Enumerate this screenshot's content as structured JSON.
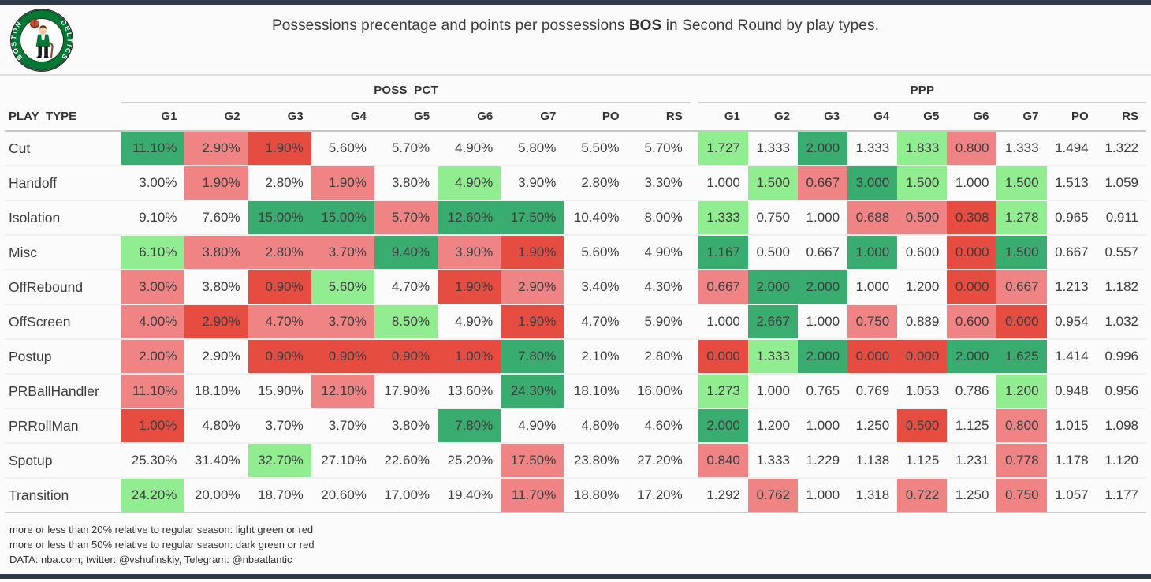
{
  "header": {
    "title_prefix": "Possessions precentage and points per possessions ",
    "title_team": "BOS",
    "title_suffix": " in Second Round by play types.",
    "logo_team": "Boston Celtics",
    "logo_ring_words": [
      "BOSTON",
      "CELTICS"
    ]
  },
  "colors": {
    "dg": "#38ad6f",
    "lg": "#90ee90",
    "lr": "#f08484",
    "dr": "#e64c3f",
    "bar": "#2e3d4c",
    "celtics_green": "#007a33"
  },
  "chart_data": {
    "type": "heatmap",
    "title": "Possessions precentage and points per possessions BOS in Second Round by play types.",
    "row_header": "PLAY_TYPE",
    "col_groups": [
      "POSS_PCT",
      "PPP"
    ],
    "columns": [
      "G1",
      "G2",
      "G3",
      "G4",
      "G5",
      "G6",
      "G7",
      "PO",
      "RS"
    ],
    "legend": "light green/red = ±20% vs regular season; dark green/red = ±50% vs regular season",
    "rows": [
      {
        "play_type": "Cut",
        "poss_pct": [
          "11.10%",
          "2.90%",
          "1.90%",
          "5.60%",
          "5.70%",
          "4.90%",
          "5.80%",
          "5.50%",
          "5.70%"
        ],
        "poss_colors": [
          "dg",
          "lr",
          "dr",
          "",
          "",
          "",
          "",
          "",
          ""
        ],
        "ppp": [
          "1.727",
          "1.333",
          "2.000",
          "1.333",
          "1.833",
          "0.800",
          "1.333",
          "1.494",
          "1.322"
        ],
        "ppp_colors": [
          "lg",
          "",
          "dg",
          "",
          "lg",
          "lr",
          "",
          "",
          ""
        ]
      },
      {
        "play_type": "Handoff",
        "poss_pct": [
          "3.00%",
          "1.90%",
          "2.80%",
          "1.90%",
          "3.80%",
          "4.90%",
          "3.90%",
          "2.80%",
          "3.30%"
        ],
        "poss_colors": [
          "",
          "lr",
          "",
          "lr",
          "",
          "lg",
          "",
          "",
          ""
        ],
        "ppp": [
          "1.000",
          "1.500",
          "0.667",
          "3.000",
          "1.500",
          "1.000",
          "1.500",
          "1.513",
          "1.059"
        ],
        "ppp_colors": [
          "",
          "lg",
          "lr",
          "dg",
          "lg",
          "",
          "lg",
          "",
          ""
        ]
      },
      {
        "play_type": "Isolation",
        "poss_pct": [
          "9.10%",
          "7.60%",
          "15.00%",
          "15.00%",
          "5.70%",
          "12.60%",
          "17.50%",
          "10.40%",
          "8.00%"
        ],
        "poss_colors": [
          "",
          "",
          "dg",
          "dg",
          "lr",
          "dg",
          "dg",
          "",
          ""
        ],
        "ppp": [
          "1.333",
          "0.750",
          "1.000",
          "0.688",
          "0.500",
          "0.308",
          "1.278",
          "0.965",
          "0.911"
        ],
        "ppp_colors": [
          "lg",
          "",
          "",
          "lr",
          "lr",
          "dr",
          "lg",
          "",
          ""
        ]
      },
      {
        "play_type": "Misc",
        "poss_pct": [
          "6.10%",
          "3.80%",
          "2.80%",
          "3.70%",
          "9.40%",
          "3.90%",
          "1.90%",
          "5.60%",
          "4.90%"
        ],
        "poss_colors": [
          "lg",
          "lr",
          "lr",
          "lr",
          "dg",
          "lr",
          "dr",
          "",
          ""
        ],
        "ppp": [
          "1.167",
          "0.500",
          "0.667",
          "1.000",
          "0.600",
          "0.000",
          "1.500",
          "0.667",
          "0.557"
        ],
        "ppp_colors": [
          "dg",
          "",
          "",
          "dg",
          "",
          "dr",
          "dg",
          "",
          ""
        ]
      },
      {
        "play_type": "OffRebound",
        "poss_pct": [
          "3.00%",
          "3.80%",
          "0.90%",
          "5.60%",
          "4.70%",
          "1.90%",
          "2.90%",
          "3.40%",
          "4.30%"
        ],
        "poss_colors": [
          "lr",
          "",
          "dr",
          "lg",
          "",
          "dr",
          "lr",
          "",
          ""
        ],
        "ppp": [
          "0.667",
          "2.000",
          "2.000",
          "1.000",
          "1.200",
          "0.000",
          "0.667",
          "1.213",
          "1.182"
        ],
        "ppp_colors": [
          "lr",
          "dg",
          "dg",
          "",
          "",
          "dr",
          "lr",
          "",
          ""
        ]
      },
      {
        "play_type": "OffScreen",
        "poss_pct": [
          "4.00%",
          "2.90%",
          "4.70%",
          "3.70%",
          "8.50%",
          "4.90%",
          "1.90%",
          "4.70%",
          "5.90%"
        ],
        "poss_colors": [
          "lr",
          "dr",
          "lr",
          "lr",
          "lg",
          "",
          "dr",
          "",
          ""
        ],
        "ppp": [
          "1.000",
          "2.667",
          "1.000",
          "0.750",
          "0.889",
          "0.600",
          "0.000",
          "0.954",
          "1.032"
        ],
        "ppp_colors": [
          "",
          "dg",
          "",
          "lr",
          "",
          "lr",
          "dr",
          "",
          ""
        ]
      },
      {
        "play_type": "Postup",
        "poss_pct": [
          "2.00%",
          "2.90%",
          "0.90%",
          "0.90%",
          "0.90%",
          "1.00%",
          "7.80%",
          "2.10%",
          "2.80%"
        ],
        "poss_colors": [
          "lr",
          "",
          "dr",
          "dr",
          "dr",
          "dr",
          "dg",
          "",
          ""
        ],
        "ppp": [
          "0.000",
          "1.333",
          "2.000",
          "0.000",
          "0.000",
          "2.000",
          "1.625",
          "1.414",
          "0.996"
        ],
        "ppp_colors": [
          "dr",
          "lg",
          "dg",
          "dr",
          "dr",
          "dg",
          "dg",
          "",
          ""
        ]
      },
      {
        "play_type": "PRBallHandler",
        "poss_pct": [
          "11.10%",
          "18.10%",
          "15.90%",
          "12.10%",
          "17.90%",
          "13.60%",
          "24.30%",
          "18.10%",
          "16.00%"
        ],
        "poss_colors": [
          "lr",
          "",
          "",
          "lr",
          "",
          "",
          "dg",
          "",
          ""
        ],
        "ppp": [
          "1.273",
          "1.000",
          "0.765",
          "0.769",
          "1.053",
          "0.786",
          "1.200",
          "0.948",
          "0.956"
        ],
        "ppp_colors": [
          "lg",
          "",
          "",
          "",
          "",
          "",
          "lg",
          "",
          ""
        ]
      },
      {
        "play_type": "PRRollMan",
        "poss_pct": [
          "1.00%",
          "4.80%",
          "3.70%",
          "3.70%",
          "3.80%",
          "7.80%",
          "4.90%",
          "4.80%",
          "4.60%"
        ],
        "poss_colors": [
          "dr",
          "",
          "",
          "",
          "",
          "dg",
          "",
          "",
          ""
        ],
        "ppp": [
          "2.000",
          "1.200",
          "1.000",
          "1.250",
          "0.500",
          "1.125",
          "0.800",
          "1.015",
          "1.098"
        ],
        "ppp_colors": [
          "dg",
          "",
          "",
          "",
          "dr",
          "",
          "lr",
          "",
          ""
        ]
      },
      {
        "play_type": "Spotup",
        "poss_pct": [
          "25.30%",
          "31.40%",
          "32.70%",
          "27.10%",
          "22.60%",
          "25.20%",
          "17.50%",
          "23.80%",
          "27.20%"
        ],
        "poss_colors": [
          "",
          "",
          "lg",
          "",
          "",
          "",
          "lr",
          "",
          ""
        ],
        "ppp": [
          "0.840",
          "1.333",
          "1.229",
          "1.138",
          "1.125",
          "1.231",
          "0.778",
          "1.178",
          "1.120"
        ],
        "ppp_colors": [
          "lr",
          "",
          "",
          "",
          "",
          "",
          "lr",
          "",
          ""
        ]
      },
      {
        "play_type": "Transition",
        "poss_pct": [
          "24.20%",
          "20.00%",
          "18.70%",
          "20.60%",
          "17.00%",
          "19.40%",
          "11.70%",
          "18.80%",
          "17.20%"
        ],
        "poss_colors": [
          "lg",
          "",
          "",
          "",
          "",
          "",
          "lr",
          "",
          ""
        ],
        "ppp": [
          "1.292",
          "0.762",
          "1.000",
          "1.318",
          "0.722",
          "1.250",
          "0.750",
          "1.057",
          "1.177"
        ],
        "ppp_colors": [
          "",
          "lr",
          "",
          "",
          "lr",
          "",
          "lr",
          "",
          ""
        ]
      }
    ]
  },
  "footer": {
    "lines": [
      "more or less than 20% relative to regular season: light green or red",
      "more or less than 50% relative to regular season: dark green or red",
      "DATA: nba.com; twitter: @vshufinskiy, Telegram: @nbaatlantic"
    ]
  }
}
